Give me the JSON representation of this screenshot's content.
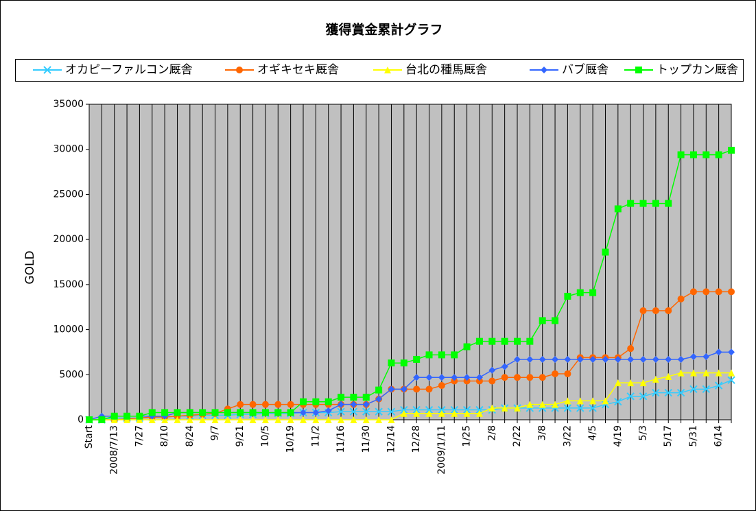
{
  "chart_data": {
    "type": "line",
    "title": "獲得賞金累計グラフ",
    "y_label": "GOLD",
    "legend": "top",
    "grid": true,
    "ylim": [
      0,
      35000
    ],
    "yticks": [
      0,
      5000,
      10000,
      15000,
      20000,
      25000,
      30000,
      35000
    ],
    "categories": [
      "Start",
      null,
      "2008/7/13",
      null,
      "7/27",
      null,
      "8/10",
      null,
      "8/24",
      null,
      "9/7",
      null,
      "9/21",
      null,
      "10/5",
      null,
      "10/19",
      null,
      "11/2",
      null,
      "11/16",
      null,
      "11/30",
      null,
      "12/14",
      null,
      "12/28",
      null,
      "2009/1/11",
      null,
      "1/25",
      null,
      "2/8",
      null,
      "2/22",
      null,
      "3/8",
      null,
      "3/22",
      null,
      "4/5",
      null,
      "4/19",
      null,
      "5/3",
      null,
      "5/17",
      null,
      "5/31",
      null,
      "6/14",
      null
    ],
    "series": [
      {
        "name": "オカピーファルコン厩舎",
        "color": "#33ccff",
        "marker": "x",
        "values": [
          0,
          0,
          200,
          200,
          200,
          300,
          300,
          400,
          400,
          500,
          500,
          500,
          600,
          600,
          700,
          700,
          700,
          800,
          800,
          800,
          900,
          900,
          900,
          900,
          900,
          1100,
          1100,
          1100,
          1100,
          1100,
          1100,
          1100,
          1100,
          1300,
          1300,
          1300,
          1300,
          1300,
          1300,
          1300,
          1300,
          1700,
          2000,
          2600,
          2600,
          3000,
          3000,
          3000,
          3400,
          3400,
          3800,
          4400
        ]
      },
      {
        "name": "オギキセキ厩舎",
        "color": "#ff6600",
        "marker": "circle",
        "values": [
          0,
          0,
          0,
          100,
          200,
          300,
          300,
          400,
          500,
          600,
          700,
          1200,
          1700,
          1700,
          1700,
          1700,
          1700,
          1700,
          1700,
          1700,
          1700,
          1700,
          1700,
          2300,
          3400,
          3400,
          3400,
          3400,
          3800,
          4300,
          4300,
          4300,
          4300,
          4700,
          4700,
          4700,
          4700,
          5100,
          5100,
          6900,
          6900,
          6900,
          6900,
          7900,
          12100,
          12100,
          12100,
          13400,
          14200,
          14200,
          14200,
          14200
        ]
      },
      {
        "name": "台北の種馬厩舎",
        "color": "#ffff00",
        "marker": "triangle",
        "values": [
          0,
          0,
          0,
          0,
          0,
          0,
          0,
          0,
          0,
          0,
          0,
          0,
          0,
          0,
          0,
          0,
          0,
          0,
          0,
          0,
          0,
          0,
          0,
          0,
          0,
          700,
          700,
          700,
          700,
          700,
          700,
          700,
          1300,
          1300,
          1300,
          1700,
          1700,
          1700,
          2100,
          2100,
          2100,
          2100,
          4100,
          4100,
          4100,
          4500,
          4800,
          5200,
          5200,
          5200,
          5200,
          5200
        ]
      },
      {
        "name": "バブ厩舎",
        "color": "#3366ff",
        "marker": "diamond",
        "values": [
          0,
          400,
          400,
          400,
          400,
          400,
          400,
          800,
          800,
          800,
          800,
          800,
          800,
          800,
          800,
          800,
          800,
          800,
          800,
          1000,
          1700,
          1700,
          1700,
          2300,
          3400,
          3400,
          4700,
          4700,
          4700,
          4700,
          4700,
          4700,
          5500,
          5900,
          6700,
          6700,
          6700,
          6700,
          6700,
          6700,
          6700,
          6700,
          6700,
          6700,
          6700,
          6700,
          6700,
          6700,
          7000,
          7000,
          7500,
          7500
        ]
      },
      {
        "name": "トップカン厩舎",
        "color": "#00ff00",
        "marker": "square",
        "values": [
          0,
          0,
          400,
          400,
          400,
          800,
          800,
          800,
          800,
          800,
          800,
          800,
          800,
          800,
          800,
          800,
          800,
          2000,
          2000,
          2000,
          2500,
          2500,
          2500,
          3300,
          6300,
          6300,
          6700,
          7200,
          7200,
          7200,
          8100,
          8700,
          8700,
          8700,
          8700,
          8700,
          11000,
          11000,
          13700,
          14100,
          14100,
          18600,
          23400,
          24000,
          24000,
          24000,
          24000,
          29400,
          29400,
          29400,
          29400,
          29900
        ]
      }
    ]
  }
}
